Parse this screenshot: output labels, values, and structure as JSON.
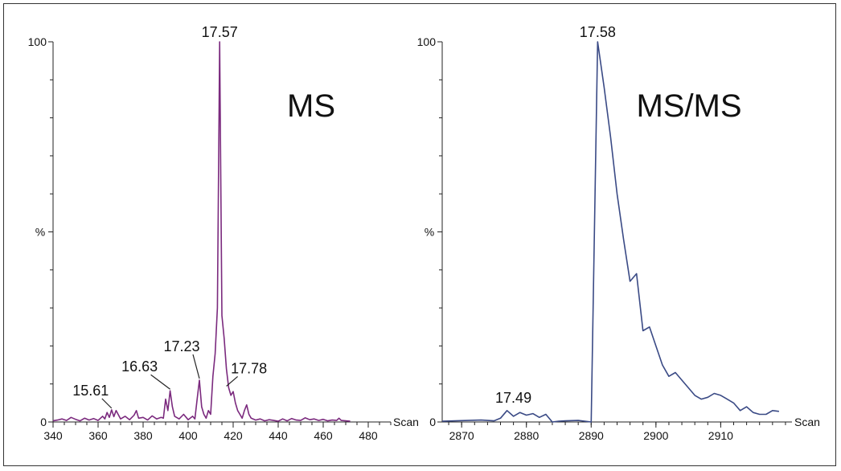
{
  "chart_data": [
    {
      "type": "line",
      "title": "MS",
      "xlabel": "Scan",
      "ylabel": "%",
      "xlim": [
        340,
        490
      ],
      "ylim": [
        0,
        100
      ],
      "x_ticks": [
        "340",
        "360",
        "380",
        "400",
        "420",
        "440",
        "460",
        "480"
      ],
      "y_ticks": [
        "0",
        "100"
      ],
      "color": "#7b2a7e",
      "series": [
        {
          "x": [
            340,
            342,
            344,
            346,
            348,
            350,
            352,
            354,
            356,
            358,
            360,
            362,
            363,
            364,
            365,
            366,
            367,
            368,
            370,
            372,
            374,
            376,
            377,
            378,
            380,
            382,
            384,
            386,
            388,
            389,
            390,
            391,
            392,
            393,
            394,
            396,
            398,
            400,
            402,
            403,
            404,
            405,
            406,
            407,
            408,
            409,
            410,
            411,
            412,
            413,
            414,
            415,
            416,
            417,
            418,
            419,
            420,
            421,
            422,
            423,
            424,
            425,
            426,
            427,
            428,
            430,
            432,
            434,
            436,
            438,
            440,
            442,
            444,
            446,
            448,
            450,
            452,
            454,
            456,
            458,
            460,
            462,
            464,
            466,
            467,
            468,
            470,
            472
          ],
          "y": [
            0.3,
            0.5,
            0.8,
            0.4,
            1.2,
            0.7,
            0.3,
            1.0,
            0.5,
            0.9,
            0.4,
            1.5,
            0.8,
            2.5,
            1.2,
            3.2,
            1.4,
            3.0,
            0.8,
            1.5,
            0.6,
            1.8,
            3.0,
            1.0,
            1.2,
            0.5,
            1.6,
            0.8,
            1.2,
            1.0,
            6.0,
            3.0,
            8.2,
            4.0,
            1.5,
            0.8,
            2.0,
            0.6,
            1.5,
            0.8,
            6.0,
            11.0,
            4.0,
            2.0,
            1.0,
            3.0,
            2.0,
            12.0,
            18.0,
            30.0,
            100.0,
            28.0,
            22.0,
            14.0,
            9.0,
            7.0,
            8.0,
            5.0,
            3.0,
            2.0,
            1.0,
            3.0,
            4.5,
            2.0,
            1.0,
            0.5,
            0.8,
            0.3,
            0.6,
            0.4,
            0.2,
            0.8,
            0.3,
            0.9,
            0.5,
            0.4,
            1.1,
            0.6,
            0.8,
            0.4,
            0.7,
            0.3,
            0.5,
            0.4,
            1.0,
            0.4,
            0.3,
            0.2
          ]
        }
      ],
      "peak_labels": [
        {
          "text": "17.57",
          "x": 414,
          "y": 100
        },
        {
          "text": "15.61",
          "x": 366,
          "y": 3.2
        },
        {
          "text": "16.63",
          "x": 392,
          "y": 8.2
        },
        {
          "text": "17.23",
          "x": 405,
          "y": 11.0
        },
        {
          "text": "17.78",
          "x": 417,
          "y": 9.0
        }
      ]
    },
    {
      "type": "line",
      "title": "MS/MS",
      "xlabel": "Scan",
      "ylabel": "%",
      "xlim": [
        2867,
        2921
      ],
      "ylim": [
        0,
        100
      ],
      "x_ticks": [
        "2870",
        "2880",
        "2890",
        "2900",
        "2910"
      ],
      "y_ticks": [
        "0",
        "100"
      ],
      "color": "#3a4a85",
      "series": [
        {
          "x": [
            2867,
            2869,
            2871,
            2873,
            2875,
            2876,
            2877,
            2878,
            2879,
            2880,
            2881,
            2882,
            2883,
            2884,
            2885,
            2886,
            2888,
            2890,
            2891,
            2892,
            2893,
            2894,
            2895,
            2896,
            2897,
            2898,
            2899,
            2900,
            2901,
            2902,
            2903,
            2904,
            2905,
            2906,
            2907,
            2908,
            2909,
            2910,
            2911,
            2912,
            2913,
            2914,
            2915,
            2916,
            2917,
            2918,
            2919
          ],
          "y": [
            0.2,
            0.3,
            0.4,
            0.5,
            0.3,
            1.0,
            3.0,
            1.5,
            2.5,
            1.8,
            2.2,
            1.2,
            2.0,
            0.0,
            0.2,
            0.3,
            0.4,
            0.0,
            100.0,
            88.0,
            75.0,
            60.0,
            48.0,
            37.0,
            39.0,
            24.0,
            25.0,
            20.0,
            15.0,
            12.0,
            13.0,
            11.0,
            9.0,
            7.0,
            6.0,
            6.5,
            7.5,
            7.0,
            6.0,
            5.0,
            3.0,
            4.0,
            2.5,
            2.0,
            2.0,
            3.0,
            2.8
          ]
        }
      ],
      "peak_labels": [
        {
          "text": "17.58",
          "x": 2891,
          "y": 100
        },
        {
          "text": "17.49",
          "x": 2877,
          "y": 3.0
        }
      ]
    }
  ]
}
